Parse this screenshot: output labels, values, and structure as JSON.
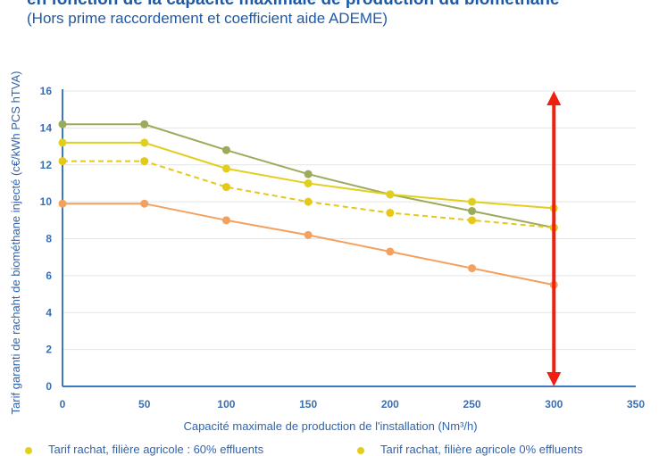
{
  "chart_data": {
    "type": "line",
    "title": "en fonction de la capacité maximale de production du biométhane",
    "subtitle": "(Hors prime raccordement et coefficient aide ADEME)",
    "xlabel": "Capacité maximale de production de l'installation (Nm³/h)",
    "ylabel": "Tarif garanti de rachaht de biométhane injecté (c€/kWh PCS hTVA)",
    "xlim": [
      0,
      350
    ],
    "ylim": [
      0,
      16
    ],
    "xticks": [
      "0",
      "50",
      "100",
      "150",
      "200",
      "250",
      "300",
      "350"
    ],
    "yticks": [
      "0",
      "2",
      "4",
      "6",
      "8",
      "10",
      "12",
      "14",
      "16"
    ],
    "grid": true,
    "x": [
      0,
      50,
      100,
      150,
      200,
      250,
      300
    ],
    "series": [
      {
        "color": "#9aab5a",
        "style": "solid",
        "values": [
          14.2,
          14.2,
          12.8,
          11.5,
          10.4,
          9.5,
          8.6
        ]
      },
      {
        "color": "#e2cf1c",
        "style": "solid",
        "values": [
          13.2,
          13.2,
          11.8,
          11.0,
          10.4,
          10.0,
          9.65
        ]
      },
      {
        "color": "#e6c817",
        "style": "dashed",
        "values": [
          12.2,
          12.2,
          10.8,
          10.0,
          9.4,
          9.0,
          8.6
        ]
      },
      {
        "color": "#f4a15f",
        "style": "solid",
        "values": [
          9.9,
          9.9,
          9.0,
          8.2,
          7.3,
          6.4,
          5.5
        ]
      }
    ],
    "annotation": {
      "type": "double-arrow",
      "x": 300,
      "y_from": 0,
      "y_to": 16,
      "color": "#f02010"
    },
    "legend": [
      {
        "label": "Tarif rachat, filière agricole : 60% effluents",
        "color": "#e2cf1c"
      },
      {
        "label": "Tarif rachat, filière agricole 0% effluents",
        "color": "#e2cf1c"
      }
    ],
    "legend_position": "bottom"
  }
}
